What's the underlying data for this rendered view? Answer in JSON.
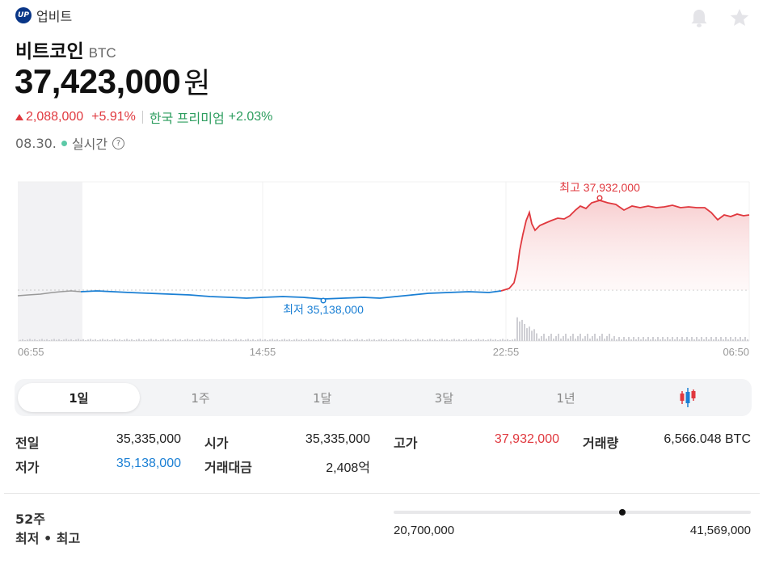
{
  "source": {
    "logo_text": "UP",
    "name": "업비트"
  },
  "icons": {
    "alert": "bell-icon",
    "favorite": "star-icon"
  },
  "coin": {
    "name": "비트코인",
    "ticker": "BTC"
  },
  "price": {
    "value": "37,423,000",
    "unit": "원"
  },
  "change": {
    "amount": "2,088,000",
    "percent": "+5.91%",
    "premium_label": "한국 프리미엄",
    "premium_value": "+2.03%"
  },
  "time": {
    "date": "08.30.",
    "status": "실시간",
    "help": "?"
  },
  "chart_data": {
    "type": "line",
    "x_ticks": [
      "06:55",
      "14:55",
      "22:55",
      "06:50"
    ],
    "high_label": "최고 37,932,000",
    "low_label": "최저 35,138,000",
    "high": 37932000,
    "low": 35138000,
    "previous_close": 35335000,
    "colors": {
      "up": "#e0383e",
      "down": "#1a7fd4",
      "pre": "#999999"
    }
  },
  "tabs": [
    {
      "label": "1일",
      "active": true
    },
    {
      "label": "1주",
      "active": false
    },
    {
      "label": "1달",
      "active": false
    },
    {
      "label": "3달",
      "active": false
    },
    {
      "label": "1년",
      "active": false
    }
  ],
  "candle_tab_icon": "candlestick-icon",
  "stats": {
    "prev_close_label": "전일",
    "prev_close": "35,335,000",
    "open_label": "시가",
    "open": "35,335,000",
    "high_label": "고가",
    "high": "37,932,000",
    "volume_label": "거래량",
    "volume": "6,566.048 BTC",
    "low_label": "저가",
    "low": "35,138,000",
    "trade_value_label": "거래대금",
    "trade_value": "2,408억"
  },
  "week52": {
    "label_line1": "52주",
    "label_line2": "최저 • 최고",
    "low": "20,700,000",
    "high": "41,569,000",
    "current_fraction": 0.64
  }
}
